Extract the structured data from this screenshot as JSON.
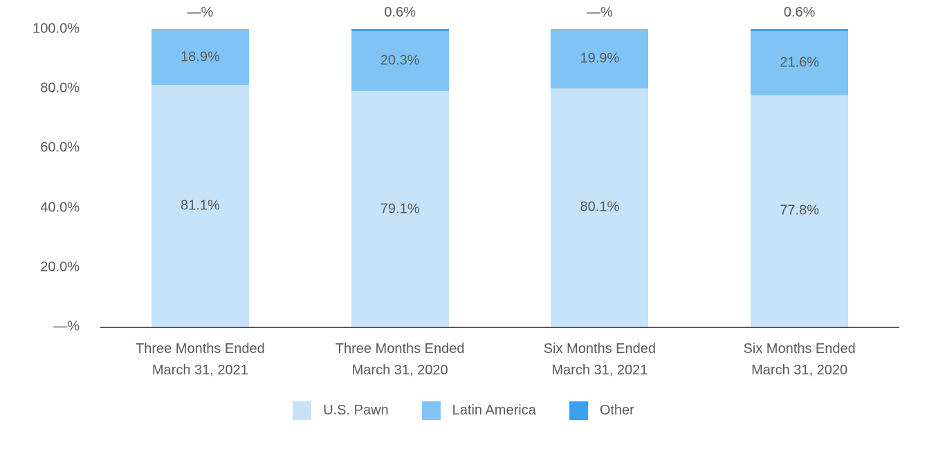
{
  "chart_data": {
    "type": "bar",
    "stacked": true,
    "title": "",
    "categories": [
      {
        "line1": "Three Months Ended",
        "line2": "March 31, 2021"
      },
      {
        "line1": "Three Months Ended",
        "line2": "March 31, 2020"
      },
      {
        "line1": "Six Months Ended",
        "line2": "March 31, 2021"
      },
      {
        "line1": "Six Months Ended",
        "line2": "March 31, 2020"
      }
    ],
    "series": [
      {
        "name": "U.S. Pawn",
        "color": "#C7E3FA",
        "values": [
          81.1,
          79.1,
          80.1,
          77.8
        ],
        "labels": [
          "81.1%",
          "79.1%",
          "80.1%",
          "77.8%"
        ],
        "label_placement": "inside"
      },
      {
        "name": "Latin America",
        "color": "#7FC4F5",
        "values": [
          18.9,
          20.3,
          19.9,
          21.6
        ],
        "labels": [
          "18.9%",
          "20.3%",
          "19.9%",
          "21.6%"
        ],
        "label_placement": "inside"
      },
      {
        "name": "Other",
        "color": "#3AA0F2",
        "values": [
          0.0,
          0.6,
          0.0,
          0.6
        ],
        "labels": [
          "—%",
          "0.6%",
          "—%",
          "0.6%"
        ],
        "label_placement": "above"
      }
    ],
    "y_axis": {
      "min": 0,
      "max": 100,
      "grid": false,
      "ticks": [
        {
          "value": 100,
          "label": "100.0%"
        },
        {
          "value": 80,
          "label": "80.0%"
        },
        {
          "value": 60,
          "label": "60.0%"
        },
        {
          "value": 40,
          "label": "40.0%"
        },
        {
          "value": 20,
          "label": "20.0%"
        },
        {
          "value": 0,
          "label": "—%"
        }
      ]
    },
    "legend": {
      "position": "bottom",
      "items": [
        "U.S. Pawn",
        "Latin America",
        "Other"
      ]
    }
  },
  "styles": {
    "text_color": "#595959",
    "axis_color": "#595959",
    "background": "#FFFFFF"
  }
}
